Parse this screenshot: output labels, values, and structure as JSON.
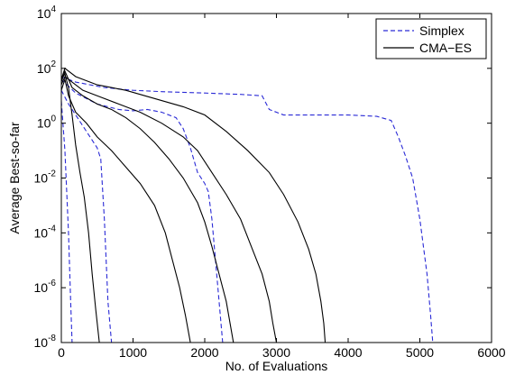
{
  "chart_data": {
    "type": "line",
    "title": "",
    "xlabel": "No. of Evaluations",
    "ylabel": "Average Best-so-far",
    "xlim": [
      0,
      6000
    ],
    "ylim_log10": [
      -8,
      4
    ],
    "y_scale": "log",
    "x_ticks": [
      0,
      1000,
      2000,
      3000,
      4000,
      5000,
      6000
    ],
    "x_tick_labels": [
      "0",
      "1000",
      "2000",
      "3000",
      "4000",
      "5000",
      "6000"
    ],
    "y_ticks_log10": [
      -8,
      -6,
      -4,
      -2,
      0,
      2,
      4
    ],
    "y_tick_labels": [
      {
        "base": "10",
        "exp": "-8"
      },
      {
        "base": "10",
        "exp": "-6"
      },
      {
        "base": "10",
        "exp": "-4"
      },
      {
        "base": "10",
        "exp": "-2"
      },
      {
        "base": "10",
        "exp": "0"
      },
      {
        "base": "10",
        "exp": "2"
      },
      {
        "base": "10",
        "exp": "4"
      }
    ],
    "grid": false,
    "legend": {
      "position": "top-right",
      "entries": [
        {
          "name": "Simplex",
          "style": "dashed",
          "color": "#2a2ad6"
        },
        {
          "name": "CMA−ES",
          "style": "solid",
          "color": "#000000"
        }
      ]
    },
    "series": [
      {
        "group": "Simplex",
        "points": [
          [
            0,
            0.8
          ],
          [
            50,
            -1.0
          ],
          [
            100,
            -4.0
          ],
          [
            130,
            -6.5
          ],
          [
            150,
            -8
          ]
        ]
      },
      {
        "group": "Simplex",
        "points": [
          [
            0,
            1.2
          ],
          [
            100,
            0.7
          ],
          [
            200,
            0.3
          ],
          [
            350,
            -0.3
          ],
          [
            500,
            -0.9
          ],
          [
            550,
            -1.3
          ],
          [
            600,
            -3.5
          ],
          [
            650,
            -6.5
          ],
          [
            700,
            -8
          ]
        ]
      },
      {
        "group": "Simplex",
        "points": [
          [
            0,
            1.6
          ],
          [
            200,
            1.1
          ],
          [
            500,
            0.7
          ],
          [
            800,
            0.5
          ],
          [
            1000,
            0.45
          ],
          [
            1200,
            0.5
          ],
          [
            1400,
            0.4
          ],
          [
            1600,
            0.2
          ],
          [
            1700,
            -0.2
          ],
          [
            1800,
            -0.9
          ],
          [
            1900,
            -1.8
          ],
          [
            2000,
            -2.2
          ],
          [
            2050,
            -2.5
          ],
          [
            2100,
            -3.5
          ],
          [
            2150,
            -5.0
          ],
          [
            2200,
            -6.5
          ],
          [
            2250,
            -8
          ]
        ]
      },
      {
        "group": "Simplex",
        "points": [
          [
            0,
            1.7
          ],
          [
            200,
            1.5
          ],
          [
            600,
            1.3
          ],
          [
            1000,
            1.2
          ],
          [
            1400,
            1.15
          ],
          [
            2000,
            1.1
          ],
          [
            2500,
            1.05
          ],
          [
            2800,
            1.0
          ],
          [
            2900,
            0.5
          ],
          [
            3100,
            0.3
          ],
          [
            3500,
            0.3
          ],
          [
            4000,
            0.3
          ],
          [
            4400,
            0.25
          ],
          [
            4600,
            0.1
          ],
          [
            4700,
            -0.5
          ],
          [
            4800,
            -1.2
          ],
          [
            4900,
            -2.0
          ],
          [
            5000,
            -3.5
          ],
          [
            5100,
            -5.5
          ],
          [
            5150,
            -7.0
          ],
          [
            5180,
            -8
          ]
        ]
      },
      {
        "group": "CMA-ES",
        "points": [
          [
            0,
            1.6
          ],
          [
            50,
            1.8
          ],
          [
            100,
            1.3
          ],
          [
            150,
            0.3
          ],
          [
            200,
            -0.8
          ],
          [
            260,
            -1.8
          ],
          [
            320,
            -2.7
          ],
          [
            380,
            -4.0
          ],
          [
            430,
            -5.5
          ],
          [
            480,
            -6.8
          ],
          [
            530,
            -8
          ]
        ]
      },
      {
        "group": "CMA-ES",
        "points": [
          [
            0,
            1.2
          ],
          [
            50,
            1.6
          ],
          [
            100,
            1.0
          ],
          [
            200,
            0.4
          ],
          [
            350,
            0.0
          ],
          [
            500,
            -0.5
          ],
          [
            700,
            -1.0
          ],
          [
            900,
            -1.6
          ],
          [
            1100,
            -2.2
          ],
          [
            1300,
            -3.0
          ],
          [
            1450,
            -4.0
          ],
          [
            1550,
            -5.0
          ],
          [
            1650,
            -6.0
          ],
          [
            1730,
            -7.0
          ],
          [
            1800,
            -8
          ]
        ]
      },
      {
        "group": "CMA-ES",
        "points": [
          [
            0,
            1.5
          ],
          [
            50,
            1.9
          ],
          [
            150,
            1.3
          ],
          [
            300,
            1.0
          ],
          [
            500,
            0.7
          ],
          [
            700,
            0.5
          ],
          [
            900,
            0.2
          ],
          [
            1100,
            -0.2
          ],
          [
            1300,
            -0.7
          ],
          [
            1500,
            -1.3
          ],
          [
            1700,
            -2.0
          ],
          [
            1900,
            -2.9
          ],
          [
            2000,
            -3.6
          ],
          [
            2100,
            -4.5
          ],
          [
            2200,
            -5.5
          ],
          [
            2300,
            -6.5
          ],
          [
            2400,
            -8
          ]
        ]
      },
      {
        "group": "CMA-ES",
        "points": [
          [
            0,
            1.4
          ],
          [
            50,
            1.7
          ],
          [
            150,
            1.5
          ],
          [
            300,
            1.2
          ],
          [
            500,
            1.0
          ],
          [
            800,
            0.7
          ],
          [
            1100,
            0.4
          ],
          [
            1400,
            0.0
          ],
          [
            1700,
            -0.5
          ],
          [
            1900,
            -1.0
          ],
          [
            2100,
            -1.8
          ],
          [
            2300,
            -2.6
          ],
          [
            2500,
            -3.5
          ],
          [
            2650,
            -4.5
          ],
          [
            2800,
            -5.5
          ],
          [
            2900,
            -6.5
          ],
          [
            2950,
            -7.3
          ],
          [
            3000,
            -8
          ]
        ]
      },
      {
        "group": "CMA-ES",
        "points": [
          [
            0,
            1.6
          ],
          [
            50,
            2.0
          ],
          [
            200,
            1.7
          ],
          [
            500,
            1.4
          ],
          [
            900,
            1.2
          ],
          [
            1300,
            0.9
          ],
          [
            1700,
            0.6
          ],
          [
            2000,
            0.3
          ],
          [
            2300,
            -0.3
          ],
          [
            2600,
            -1.0
          ],
          [
            2900,
            -1.8
          ],
          [
            3100,
            -2.6
          ],
          [
            3300,
            -3.6
          ],
          [
            3450,
            -4.6
          ],
          [
            3550,
            -5.5
          ],
          [
            3620,
            -6.5
          ],
          [
            3660,
            -7.3
          ],
          [
            3680,
            -8
          ]
        ]
      }
    ]
  }
}
